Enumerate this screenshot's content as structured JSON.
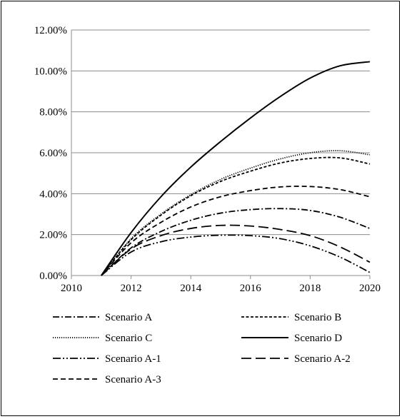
{
  "chart_data": {
    "type": "line",
    "title": "",
    "xlabel": "",
    "ylabel": "",
    "xlim": [
      2010,
      2020
    ],
    "ylim": [
      0,
      12
    ],
    "x_ticks": [
      "2010",
      "2012",
      "2014",
      "2016",
      "2018",
      "2020"
    ],
    "y_ticks": [
      "0.00%",
      "2.00%",
      "4.00%",
      "6.00%",
      "8.00%",
      "10.00%",
      "12.00%"
    ],
    "grid": "horizontal",
    "legend_position": "bottom",
    "series": [
      {
        "name": "Scenario A",
        "dash": "dashdot",
        "x": [
          2011,
          2012,
          2013,
          2014,
          2015,
          2016,
          2017,
          2018,
          2019,
          2020
        ],
        "y": [
          0.0,
          1.35,
          2.15,
          2.7,
          3.05,
          3.22,
          3.27,
          3.18,
          2.85,
          2.3
        ]
      },
      {
        "name": "Scenario B",
        "dash": "shortdash",
        "x": [
          2011,
          2012,
          2013,
          2014,
          2015,
          2016,
          2017,
          2018,
          2019,
          2020
        ],
        "y": [
          0.0,
          1.75,
          2.95,
          3.9,
          4.6,
          5.1,
          5.5,
          5.72,
          5.75,
          5.45
        ]
      },
      {
        "name": "Scenario C",
        "dash": "dotted",
        "x": [
          2011,
          2012,
          2013,
          2014,
          2015,
          2016,
          2017,
          2018,
          2019,
          2020
        ],
        "y": [
          0.0,
          1.8,
          3.0,
          3.95,
          4.7,
          5.25,
          5.7,
          6.0,
          6.1,
          5.9
        ]
      },
      {
        "name": "Scenario D",
        "dash": "solid",
        "x": [
          2011,
          2012,
          2013,
          2014,
          2015,
          2016,
          2017,
          2018,
          2019,
          2020
        ],
        "y": [
          0.0,
          2.1,
          3.85,
          5.3,
          6.55,
          7.7,
          8.75,
          9.65,
          10.25,
          10.45
        ]
      },
      {
        "name": "Scenario A-1",
        "dash": "dashdotdot",
        "x": [
          2011,
          2012,
          2013,
          2014,
          2015,
          2016,
          2017,
          2018,
          2019,
          2020
        ],
        "y": [
          0.0,
          1.15,
          1.65,
          1.88,
          1.97,
          1.95,
          1.8,
          1.45,
          0.9,
          0.15
        ]
      },
      {
        "name": "Scenario A-2",
        "dash": "longdash",
        "x": [
          2011,
          2012,
          2013,
          2014,
          2015,
          2016,
          2017,
          2018,
          2019,
          2020
        ],
        "y": [
          0.0,
          1.3,
          1.95,
          2.3,
          2.45,
          2.42,
          2.25,
          1.95,
          1.4,
          0.65
        ]
      },
      {
        "name": "Scenario A-3",
        "dash": "mediumdash",
        "x": [
          2011,
          2012,
          2013,
          2014,
          2015,
          2016,
          2017,
          2018,
          2019,
          2020
        ],
        "y": [
          0.0,
          1.6,
          2.6,
          3.35,
          3.85,
          4.15,
          4.33,
          4.35,
          4.2,
          3.85
        ]
      }
    ]
  }
}
